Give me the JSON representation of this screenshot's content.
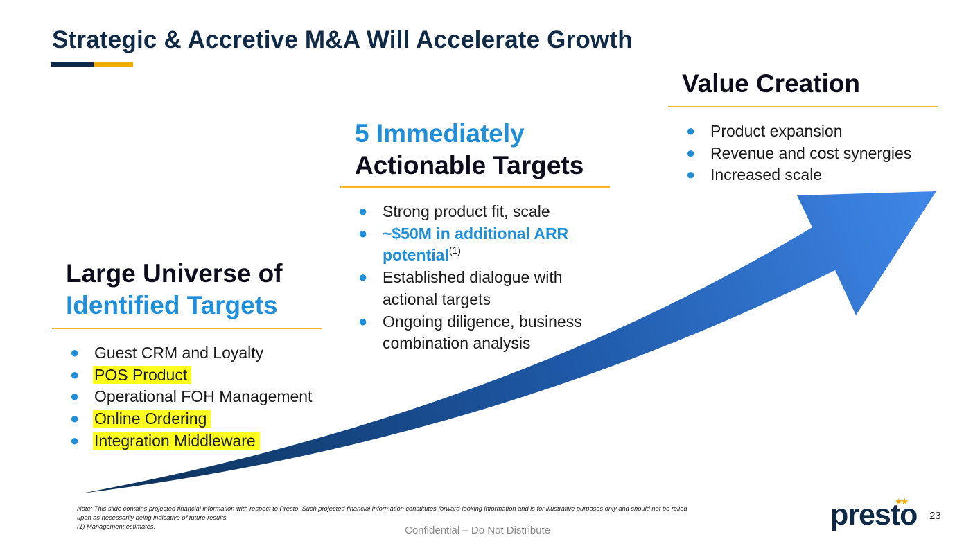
{
  "slide": {
    "title": "Strategic & Accretive M&A Will Accelerate Growth",
    "page_number": "23"
  },
  "section_left": {
    "heading_line1": "Large Universe of",
    "heading_line2": "Identified Targets",
    "bullets": [
      {
        "text": "Guest CRM and Loyalty",
        "highlighted": false
      },
      {
        "text": "POS Product",
        "highlighted": true
      },
      {
        "text": "Operational FOH Management",
        "highlighted": false
      },
      {
        "text": "Online Ordering",
        "highlighted": true
      },
      {
        "text": "Integration Middleware",
        "highlighted": true
      }
    ]
  },
  "section_middle": {
    "heading_line1": "5 Immediately",
    "heading_line2": "Actionable Targets",
    "bullet1": "Strong product fit, scale",
    "bullet2_line1": "~$50M in additional ARR",
    "bullet2_line2": "potential",
    "bullet2_sup": "(1)",
    "bullet3_line1": "Established dialogue with",
    "bullet3_line2": "actional targets",
    "bullet4_line1": "Ongoing diligence, business",
    "bullet4_line2": "combination analysis"
  },
  "section_right": {
    "heading": "Value Creation",
    "bullets": [
      "Product expansion",
      "Revenue and cost synergies",
      "Increased scale"
    ]
  },
  "footer": {
    "note_line1": "Note: This slide contains projected financial information with respect to Presto. Such projected financial information constitutes forward-looking information and is for illustrative purposes only and should not be relied",
    "note_line2": "upon as necessarily being indicative of future results.",
    "note_line3": "(1) Management estimates.",
    "confidential": "Confidential – Do Not Distribute"
  },
  "logo": {
    "text": "presto",
    "stars": "★★"
  },
  "colors": {
    "navy": "#0f2a47",
    "accent_blue": "#1f8fdc",
    "gold": "#f2a900",
    "highlight": "#ffff1e",
    "arrow_start": "#0b2f55",
    "arrow_end": "#3f87e8"
  },
  "icons": {
    "bullet": "bullet-dot-icon",
    "arrow": "growth-arrow-icon"
  }
}
